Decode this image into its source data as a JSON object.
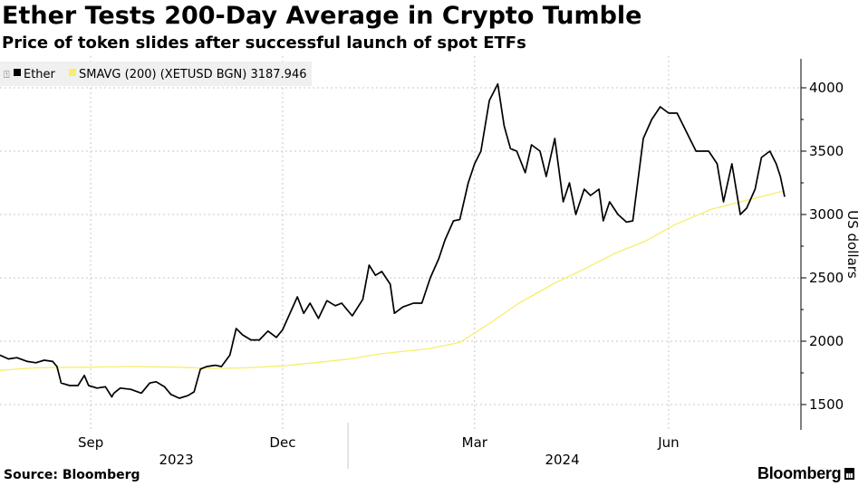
{
  "header": {
    "title": "Ether Tests 200-Day Average in Crypto Tumble",
    "subtitle": "Price of token slides after successful launch of spot ETFs"
  },
  "footer": {
    "source": "Source: Bloomberg",
    "brand": "Bloomberg"
  },
  "colors": {
    "ether": "#000000",
    "sma": "#f6ef6a",
    "grid": "#c8c8c8",
    "legend_bg": "#f0f0f0"
  },
  "chart_data": {
    "type": "line",
    "title": "Ether Tests 200-Day Average in Crypto Tumble",
    "subtitle": "Price of token slides after successful launch of spot ETFs",
    "xlabel": "",
    "ylabel": "US dollars",
    "ylim": [
      1300,
      4250
    ],
    "y_ticks": [
      1500,
      2000,
      2500,
      3000,
      3500,
      4000
    ],
    "x_range": [
      "2023-07-20",
      "2024-07-26"
    ],
    "x_ticks": [
      {
        "date": "2023-09-01",
        "label": "Sep"
      },
      {
        "date": "2023-12-01",
        "label": "Dec"
      },
      {
        "date": "2024-03-01",
        "label": "Mar"
      },
      {
        "date": "2024-06-01",
        "label": "Jun"
      }
    ],
    "year_labels": [
      {
        "date": "2023-10-15",
        "label": "2023"
      },
      {
        "date": "2024-04-15",
        "label": "2024"
      }
    ],
    "grid": true,
    "legend": "top-left",
    "legend_entries": [
      {
        "label": "Ether",
        "color": "#000000"
      },
      {
        "label": "SMAVG (200) (XETUSD BGN) 3187.946",
        "color": "#f6ef6a"
      }
    ],
    "series": [
      {
        "name": "Ether",
        "points": [
          [
            "2023-07-20",
            1890
          ],
          [
            "2023-07-24",
            1860
          ],
          [
            "2023-07-28",
            1870
          ],
          [
            "2023-08-02",
            1840
          ],
          [
            "2023-08-06",
            1830
          ],
          [
            "2023-08-10",
            1850
          ],
          [
            "2023-08-14",
            1840
          ],
          [
            "2023-08-16",
            1800
          ],
          [
            "2023-08-18",
            1670
          ],
          [
            "2023-08-22",
            1650
          ],
          [
            "2023-08-26",
            1650
          ],
          [
            "2023-08-29",
            1730
          ],
          [
            "2023-08-31",
            1650
          ],
          [
            "2023-09-04",
            1630
          ],
          [
            "2023-09-08",
            1640
          ],
          [
            "2023-09-11",
            1560
          ],
          [
            "2023-09-12",
            1590
          ],
          [
            "2023-09-15",
            1630
          ],
          [
            "2023-09-20",
            1620
          ],
          [
            "2023-09-25",
            1590
          ],
          [
            "2023-09-29",
            1670
          ],
          [
            "2023-10-02",
            1680
          ],
          [
            "2023-10-06",
            1640
          ],
          [
            "2023-10-09",
            1580
          ],
          [
            "2023-10-13",
            1550
          ],
          [
            "2023-10-17",
            1570
          ],
          [
            "2023-10-20",
            1600
          ],
          [
            "2023-10-23",
            1780
          ],
          [
            "2023-10-26",
            1800
          ],
          [
            "2023-10-30",
            1810
          ],
          [
            "2023-11-02",
            1800
          ],
          [
            "2023-11-06",
            1890
          ],
          [
            "2023-11-09",
            2100
          ],
          [
            "2023-11-12",
            2050
          ],
          [
            "2023-11-16",
            2010
          ],
          [
            "2023-11-20",
            2010
          ],
          [
            "2023-11-24",
            2080
          ],
          [
            "2023-11-28",
            2030
          ],
          [
            "2023-12-01",
            2090
          ],
          [
            "2023-12-05",
            2240
          ],
          [
            "2023-12-08",
            2350
          ],
          [
            "2023-12-11",
            2220
          ],
          [
            "2023-12-14",
            2300
          ],
          [
            "2023-12-18",
            2180
          ],
          [
            "2023-12-22",
            2320
          ],
          [
            "2023-12-26",
            2280
          ],
          [
            "2023-12-29",
            2300
          ],
          [
            "2024-01-03",
            2200
          ],
          [
            "2024-01-08",
            2330
          ],
          [
            "2024-01-11",
            2600
          ],
          [
            "2024-01-14",
            2520
          ],
          [
            "2024-01-17",
            2550
          ],
          [
            "2024-01-21",
            2450
          ],
          [
            "2024-01-23",
            2220
          ],
          [
            "2024-01-27",
            2270
          ],
          [
            "2024-02-01",
            2300
          ],
          [
            "2024-02-05",
            2300
          ],
          [
            "2024-02-09",
            2500
          ],
          [
            "2024-02-13",
            2650
          ],
          [
            "2024-02-16",
            2800
          ],
          [
            "2024-02-20",
            2950
          ],
          [
            "2024-02-23",
            2960
          ],
          [
            "2024-02-27",
            3250
          ],
          [
            "2024-03-01",
            3400
          ],
          [
            "2024-03-04",
            3500
          ],
          [
            "2024-03-08",
            3900
          ],
          [
            "2024-03-12",
            4030
          ],
          [
            "2024-03-15",
            3700
          ],
          [
            "2024-03-18",
            3520
          ],
          [
            "2024-03-21",
            3500
          ],
          [
            "2024-03-25",
            3330
          ],
          [
            "2024-03-28",
            3550
          ],
          [
            "2024-04-01",
            3500
          ],
          [
            "2024-04-04",
            3300
          ],
          [
            "2024-04-08",
            3600
          ],
          [
            "2024-04-12",
            3100
          ],
          [
            "2024-04-15",
            3250
          ],
          [
            "2024-04-18",
            3000
          ],
          [
            "2024-04-22",
            3200
          ],
          [
            "2024-04-25",
            3150
          ],
          [
            "2024-04-29",
            3200
          ],
          [
            "2024-05-01",
            2950
          ],
          [
            "2024-05-04",
            3100
          ],
          [
            "2024-05-08",
            3000
          ],
          [
            "2024-05-12",
            2940
          ],
          [
            "2024-05-15",
            2950
          ],
          [
            "2024-05-20",
            3600
          ],
          [
            "2024-05-24",
            3750
          ],
          [
            "2024-05-28",
            3850
          ],
          [
            "2024-06-01",
            3800
          ],
          [
            "2024-06-05",
            3800
          ],
          [
            "2024-06-08",
            3700
          ],
          [
            "2024-06-11",
            3600
          ],
          [
            "2024-06-14",
            3500
          ],
          [
            "2024-06-17",
            3500
          ],
          [
            "2024-06-20",
            3500
          ],
          [
            "2024-06-24",
            3400
          ],
          [
            "2024-06-27",
            3100
          ],
          [
            "2024-07-01",
            3400
          ],
          [
            "2024-07-05",
            3000
          ],
          [
            "2024-07-08",
            3050
          ],
          [
            "2024-07-12",
            3200
          ],
          [
            "2024-07-15",
            3450
          ],
          [
            "2024-07-19",
            3500
          ],
          [
            "2024-07-22",
            3400
          ],
          [
            "2024-07-24",
            3300
          ],
          [
            "2024-07-26",
            3140
          ]
        ]
      },
      {
        "name": "SMAVG (200) (XETUSD BGN)",
        "points": [
          [
            "2023-07-20",
            1770
          ],
          [
            "2023-08-06",
            1790
          ],
          [
            "2023-08-30",
            1795
          ],
          [
            "2023-09-21",
            1800
          ],
          [
            "2023-10-12",
            1795
          ],
          [
            "2023-10-29",
            1785
          ],
          [
            "2023-11-14",
            1790
          ],
          [
            "2023-12-01",
            1805
          ],
          [
            "2023-12-16",
            1830
          ],
          [
            "2024-01-02",
            1860
          ],
          [
            "2024-01-16",
            1900
          ],
          [
            "2024-02-08",
            1940
          ],
          [
            "2024-02-23",
            1990
          ],
          [
            "2024-03-09",
            2150
          ],
          [
            "2024-03-22",
            2300
          ],
          [
            "2024-04-07",
            2450
          ],
          [
            "2024-04-22",
            2570
          ],
          [
            "2024-05-06",
            2690
          ],
          [
            "2024-05-21",
            2790
          ],
          [
            "2024-06-04",
            2920
          ],
          [
            "2024-06-21",
            3040
          ],
          [
            "2024-07-05",
            3100
          ],
          [
            "2024-07-26",
            3188
          ]
        ]
      }
    ]
  }
}
